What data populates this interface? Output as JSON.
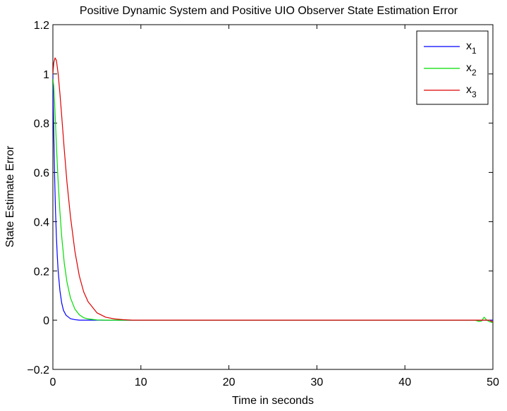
{
  "chart_data": {
    "type": "line",
    "title": "Positive Dynamic System and Positive UIO Observer State Estimation Error",
    "xlabel": "Time in seconds",
    "ylabel": "State Estimate Error",
    "xlim": [
      0,
      50
    ],
    "ylim": [
      -0.2,
      1.2
    ],
    "xticks": [
      0,
      10,
      20,
      30,
      40,
      50
    ],
    "xtick_labels": [
      "0",
      "10",
      "20",
      "30",
      "40",
      "50"
    ],
    "yticks": [
      -0.2,
      0,
      0.2,
      0.4,
      0.6,
      0.8,
      1,
      1.2
    ],
    "ytick_labels": [
      "−0.2",
      "0",
      "0.2",
      "0.4",
      "0.6",
      "0.8",
      "1",
      "1.2"
    ],
    "grid": false,
    "legend_position": "top-right",
    "series": [
      {
        "name": "x1",
        "legend_base": "x",
        "legend_sub": "1",
        "color": "#0000ff",
        "x": [
          0,
          0.05,
          0.1,
          0.2,
          0.3,
          0.4,
          0.5,
          0.6,
          0.8,
          1.0,
          1.2,
          1.5,
          2.0,
          2.5,
          3.0,
          4.0,
          5.0,
          10,
          20,
          30,
          40,
          48,
          50
        ],
        "y": [
          1.0,
          0.87,
          0.76,
          0.58,
          0.44,
          0.34,
          0.26,
          0.2,
          0.12,
          0.07,
          0.04,
          0.02,
          0.006,
          0.002,
          0.0,
          0.0,
          0.0,
          0.0,
          0.0,
          0.0,
          0.0,
          0.0,
          0.0
        ]
      },
      {
        "name": "x2",
        "legend_base": "x",
        "legend_sub": "2",
        "color": "#00dd00",
        "x": [
          0,
          0.1,
          0.2,
          0.4,
          0.6,
          0.8,
          1.0,
          1.3,
          1.6,
          2.0,
          2.5,
          3.0,
          3.5,
          4.0,
          5.0,
          6.0,
          10,
          20,
          30,
          40,
          48.0,
          48.4,
          48.7,
          49.0,
          49.3,
          49.6,
          50
        ],
        "y": [
          0.98,
          0.95,
          0.88,
          0.71,
          0.56,
          0.44,
          0.34,
          0.23,
          0.155,
          0.09,
          0.045,
          0.022,
          0.01,
          0.005,
          0.001,
          0.0,
          0.0,
          0.0,
          0.0,
          0.0,
          0.0,
          -0.005,
          -0.004,
          0.012,
          0.0,
          -0.006,
          -0.01
        ]
      },
      {
        "name": "x3",
        "legend_base": "x",
        "legend_sub": "3",
        "color": "#dd0000",
        "x": [
          0,
          0.1,
          0.25,
          0.4,
          0.6,
          0.8,
          1.0,
          1.3,
          1.6,
          2.0,
          2.5,
          3.0,
          3.5,
          4.0,
          5.0,
          6.0,
          7.0,
          8.0,
          9.0,
          10,
          20,
          30,
          40,
          49.0,
          49.6,
          50
        ],
        "y": [
          1.0,
          1.045,
          1.065,
          1.055,
          1.0,
          0.92,
          0.83,
          0.69,
          0.56,
          0.42,
          0.28,
          0.18,
          0.115,
          0.075,
          0.03,
          0.012,
          0.005,
          0.002,
          0.0,
          0.0,
          0.0,
          0.0,
          0.0,
          0.0,
          0.0,
          -0.008
        ]
      }
    ]
  }
}
